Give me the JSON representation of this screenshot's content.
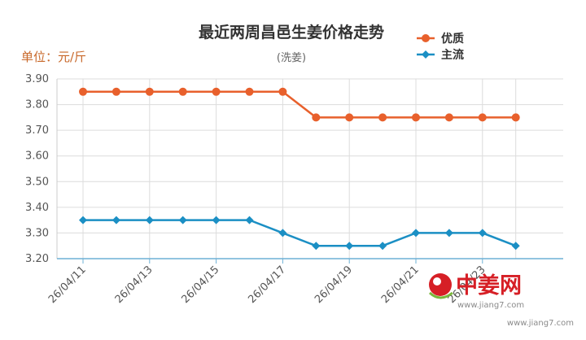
{
  "chart_data": {
    "type": "line",
    "title": "最近两周昌邑生姜价格走势",
    "subtitle": "(洗姜)",
    "unit_label": "单位：元/斤",
    "ylim": [
      3.2,
      3.9
    ],
    "yticks": [
      "3.90",
      "3.80",
      "3.70",
      "3.60",
      "3.50",
      "3.40",
      "3.30",
      "3.20"
    ],
    "x": [
      "26/04/11",
      "26/04/12",
      "26/04/13",
      "26/04/14",
      "26/04/15",
      "26/04/16",
      "26/04/17",
      "26/04/18",
      "26/04/19",
      "26/04/20",
      "26/04/21",
      "26/04/22",
      "26/04/23",
      "26/04/24"
    ],
    "xtick_labels": [
      "26/04/11",
      "26/04/13",
      "26/04/15",
      "26/04/17",
      "26/04/19",
      "26/04/21",
      "26/04/23"
    ],
    "legend_position": "top-right",
    "grid": true,
    "series": [
      {
        "name": "优质",
        "color": "#e8602c",
        "marker": "circle",
        "values": [
          3.85,
          3.85,
          3.85,
          3.85,
          3.85,
          3.85,
          3.85,
          3.75,
          3.75,
          3.75,
          3.75,
          3.75,
          3.75,
          3.75
        ]
      },
      {
        "name": "主流",
        "color": "#1b8fc4",
        "marker": "diamond",
        "values": [
          3.35,
          3.35,
          3.35,
          3.35,
          3.35,
          3.35,
          3.3,
          3.25,
          3.25,
          3.25,
          3.3,
          3.3,
          3.3,
          3.25
        ]
      }
    ]
  },
  "watermark": {
    "logo_text": "中姜网",
    "url": "www.jiang7.com",
    "url2": "www.jiang7.com"
  }
}
